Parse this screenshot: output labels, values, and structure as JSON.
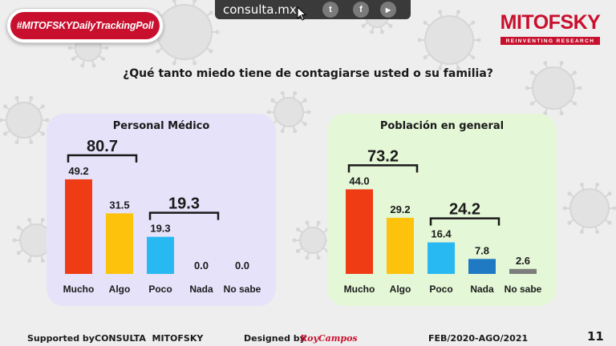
{
  "header": {
    "hashtag": "#MITOFSKYDailyTrackingPoll",
    "site": "consulta.mx",
    "social_icons": [
      {
        "name": "twitter-icon",
        "glyph": "t"
      },
      {
        "name": "facebook-icon",
        "glyph": "f"
      },
      {
        "name": "youtube-icon",
        "glyph": "▶"
      }
    ],
    "logo_title": "MITOFSKY",
    "logo_tagline": "REINVENTING RESEARCH"
  },
  "question": "¿Qué tanto miedo tiene de contagiarse usted o su familia?",
  "colors": {
    "mucho": "#f03c14",
    "algo": "#fdc20c",
    "poco": "#29b9f2",
    "nada": "#1f79c3",
    "no_sabe": "#7d7d7d",
    "brand": "#c8102e"
  },
  "chart_data": [
    {
      "type": "bar",
      "title": "Personal Médico",
      "categories": [
        "Mucho",
        "Algo",
        "Poco",
        "Nada",
        "No sabe"
      ],
      "values": [
        49.2,
        31.5,
        19.3,
        0.0,
        0.0
      ],
      "value_labels": [
        "49.2",
        "31.5",
        "19.3",
        "0.0",
        "0.0"
      ],
      "ylim": [
        0,
        50
      ],
      "groups": [
        {
          "label": "80.7",
          "from": 0,
          "to": 1
        },
        {
          "label": "19.3",
          "from": 2,
          "to": 3
        }
      ]
    },
    {
      "type": "bar",
      "title": "Población en general",
      "categories": [
        "Mucho",
        "Algo",
        "Poco",
        "Nada",
        "No sabe"
      ],
      "values": [
        44.0,
        29.2,
        16.4,
        7.8,
        2.6
      ],
      "value_labels": [
        "44.0",
        "29.2",
        "16.4",
        "7.8",
        "2.6"
      ],
      "ylim": [
        0,
        50
      ],
      "groups": [
        {
          "label": "73.2",
          "from": 0,
          "to": 1
        },
        {
          "label": "24.2",
          "from": 2,
          "to": 3
        }
      ]
    }
  ],
  "footer": {
    "supported_by": "Supported by",
    "sponsor": "CONSULTA  MITOFSKY",
    "designed_by": "Designed by",
    "designer": "RoyCampos",
    "date_range": "FEB/2020-AGO/2021",
    "page": "11"
  }
}
